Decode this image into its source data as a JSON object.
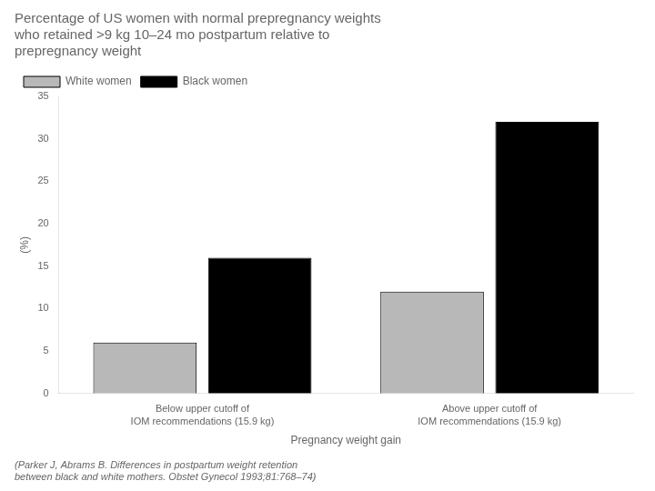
{
  "chart_data": {
    "type": "bar",
    "title": "Percentage of US women with normal prepregnancy weights\nwho retained >9 kg 10–24 mo postpartum relative to\nprepregnancy weight",
    "categories": [
      "Below upper cutoff of\nIOM recommendations (15.9 kg)",
      "Above upper cutoff of\nIOM recommendations (15.9 kg)"
    ],
    "series": [
      {
        "name": "White women",
        "color": "#b8b8b8",
        "values": [
          6,
          12
        ]
      },
      {
        "name": "Black women",
        "color": "#000000",
        "values": [
          16,
          32
        ]
      }
    ],
    "xlabel": "Pregnancy weight gain",
    "ylabel": "(%)",
    "ylim": [
      0,
      35
    ],
    "yticks": [
      0,
      5,
      10,
      15,
      20,
      25,
      30,
      35
    ],
    "grid": false,
    "legend": "upper left",
    "annotations": [
      "(Parker J, Abrams B. Differences in postpartum weight retention\nbetween black and white mothers. Obstet Gynecol 1993;81:768–74)"
    ]
  }
}
